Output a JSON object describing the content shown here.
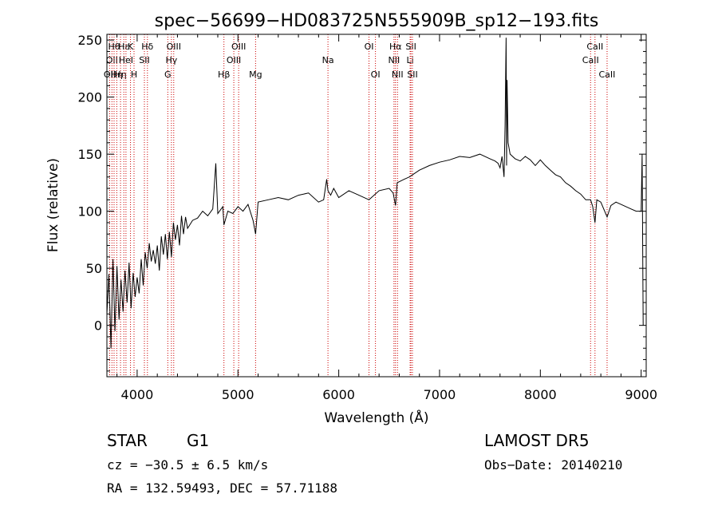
{
  "chart_data": {
    "type": "line",
    "title": "spec−56699−HD083725N555909B_sp12−193.fits",
    "xlabel": "Wavelength (Å)",
    "ylabel": "Flux (relative)",
    "xlim": [
      3700,
      9050
    ],
    "ylim": [
      -45,
      255
    ],
    "xticks": [
      4000,
      5000,
      6000,
      7000,
      8000,
      9000
    ],
    "yticks": [
      0,
      50,
      100,
      150,
      200,
      250
    ],
    "grid": false,
    "line_color": "#000000",
    "marker_color": "#cc0000",
    "series": [
      {
        "x": [
          3700,
          3720,
          3740,
          3760,
          3780,
          3800,
          3820,
          3840,
          3860,
          3880,
          3900,
          3920,
          3940,
          3960,
          3980,
          4000,
          4020,
          4040,
          4060,
          4080,
          4100,
          4120,
          4140,
          4160,
          4180,
          4200,
          4220,
          4240,
          4260,
          4280,
          4300,
          4320,
          4340,
          4360,
          4380,
          4400,
          4420,
          4440,
          4460,
          4480,
          4500,
          4550,
          4600,
          4650,
          4700,
          4750,
          4780,
          4800,
          4850,
          4861,
          4900,
          4950,
          5000,
          5050,
          5100,
          5150,
          5175,
          5200,
          5300,
          5400,
          5500,
          5600,
          5700,
          5800,
          5850,
          5880,
          5893,
          5920,
          5950,
          6000,
          6100,
          6200,
          6300,
          6400,
          6500,
          6540,
          6563,
          6580,
          6650,
          6700,
          6800,
          6900,
          7000,
          7100,
          7200,
          7300,
          7400,
          7500,
          7550,
          7580,
          7600,
          7620,
          7640,
          7650,
          7660,
          7665,
          7670,
          7680,
          7700,
          7750,
          7800,
          7850,
          7900,
          7950,
          8000,
          8050,
          8100,
          8150,
          8200,
          8250,
          8300,
          8350,
          8400,
          8450,
          8498,
          8520,
          8542,
          8560,
          8600,
          8662,
          8700,
          8750,
          8800,
          8850,
          8900,
          8950,
          9000,
          9010,
          9020
        ],
        "y": [
          10,
          45,
          -20,
          58,
          -5,
          52,
          5,
          40,
          12,
          48,
          20,
          55,
          15,
          46,
          25,
          42,
          28,
          58,
          35,
          64,
          50,
          72,
          56,
          66,
          54,
          70,
          48,
          78,
          62,
          80,
          58,
          82,
          60,
          90,
          75,
          88,
          70,
          96,
          80,
          95,
          85,
          92,
          94,
          100,
          96,
          102,
          142,
          98,
          104,
          88,
          100,
          98,
          104,
          100,
          106,
          92,
          80,
          108,
          110,
          112,
          110,
          114,
          116,
          108,
          110,
          128,
          118,
          114,
          120,
          112,
          118,
          114,
          110,
          118,
          120,
          116,
          105,
          125,
          128,
          130,
          136,
          140,
          143,
          145,
          148,
          147,
          150,
          146,
          144,
          142,
          138,
          148,
          130,
          175,
          252,
          140,
          215,
          160,
          150,
          146,
          144,
          148,
          145,
          140,
          145,
          140,
          136,
          132,
          130,
          125,
          122,
          118,
          115,
          110,
          110,
          104,
          90,
          110,
          108,
          95,
          105,
          108,
          106,
          104,
          102,
          100,
          100,
          150,
          0
        ]
      }
    ],
    "line_markers": [
      {
        "wl": 3727,
        "label": "OII",
        "row": 3
      },
      {
        "wl": 3750,
        "label": "OII",
        "row": 2
      },
      {
        "wl": 3771,
        "label": "Hθ",
        "row": 1
      },
      {
        "wl": 3798,
        "label": "Hη",
        "row": 3
      },
      {
        "wl": 3835,
        "label": "Hη",
        "row": 3
      },
      {
        "wl": 3868,
        "label": "Hε",
        "row": 1
      },
      {
        "wl": 3889,
        "label": "HeI",
        "row": 2
      },
      {
        "wl": 3934,
        "label": "K",
        "row": 1
      },
      {
        "wl": 3969,
        "label": "H",
        "row": 3
      },
      {
        "wl": 4072,
        "label": "SII",
        "row": 2
      },
      {
        "wl": 4102,
        "label": "Hδ",
        "row": 1
      },
      {
        "wl": 4304,
        "label": "G",
        "row": 3
      },
      {
        "wl": 4340,
        "label": "Hγ",
        "row": 2
      },
      {
        "wl": 4363,
        "label": "OIII",
        "row": 1
      },
      {
        "wl": 4861,
        "label": "Hβ",
        "row": 3
      },
      {
        "wl": 4959,
        "label": "OIII",
        "row": 2
      },
      {
        "wl": 5007,
        "label": "OIII",
        "row": 1
      },
      {
        "wl": 5175,
        "label": "Mg",
        "row": 3
      },
      {
        "wl": 5893,
        "label": "Na",
        "row": 2
      },
      {
        "wl": 6300,
        "label": "OI",
        "row": 1
      },
      {
        "wl": 6364,
        "label": "OI",
        "row": 3
      },
      {
        "wl": 6548,
        "label": "NII",
        "row": 2
      },
      {
        "wl": 6563,
        "label": "Hα",
        "row": 1
      },
      {
        "wl": 6583,
        "label": "NII",
        "row": 3
      },
      {
        "wl": 6708,
        "label": "Li",
        "row": 2
      },
      {
        "wl": 6716,
        "label": "SII",
        "row": 1
      },
      {
        "wl": 6731,
        "label": "SII",
        "row": 3
      },
      {
        "wl": 8498,
        "label": "CaII",
        "row": 2
      },
      {
        "wl": 8542,
        "label": "CaII",
        "row": 1
      },
      {
        "wl": 8662,
        "label": "CaII",
        "row": 3
      }
    ]
  },
  "footer": {
    "object_class": "STAR",
    "subclass": "G1",
    "survey": "LAMOST DR5",
    "cz": "cz = −30.5 ± 6.5 km/s",
    "obs_date": "Obs−Date: 20140210",
    "coords": "RA = 132.59493, DEC =  57.71188"
  }
}
